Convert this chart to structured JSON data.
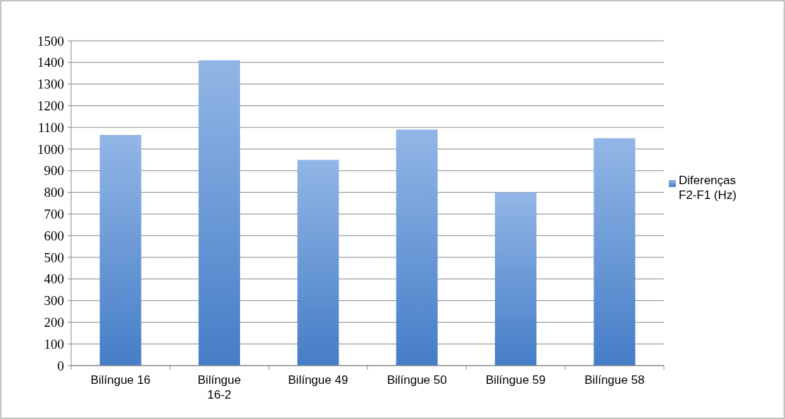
{
  "chart_data": {
    "type": "bar",
    "categories": [
      "Bilíngue 16",
      "Bilíngue 16-2",
      "Bilíngue 49",
      "Bilíngue 50",
      "Bilíngue 59",
      "Bilíngue 58"
    ],
    "series": [
      {
        "name": "Diferenças F2-F1 (Hz)",
        "color": "#4a86d6",
        "values": [
          1065,
          1410,
          950,
          1090,
          800,
          1050
        ]
      }
    ],
    "ylim": [
      0,
      1500
    ],
    "yticks": [
      0,
      100,
      200,
      300,
      400,
      500,
      600,
      700,
      800,
      900,
      1000,
      1100,
      1200,
      1300,
      1400,
      1500
    ],
    "grid": "y",
    "legend": "right"
  }
}
